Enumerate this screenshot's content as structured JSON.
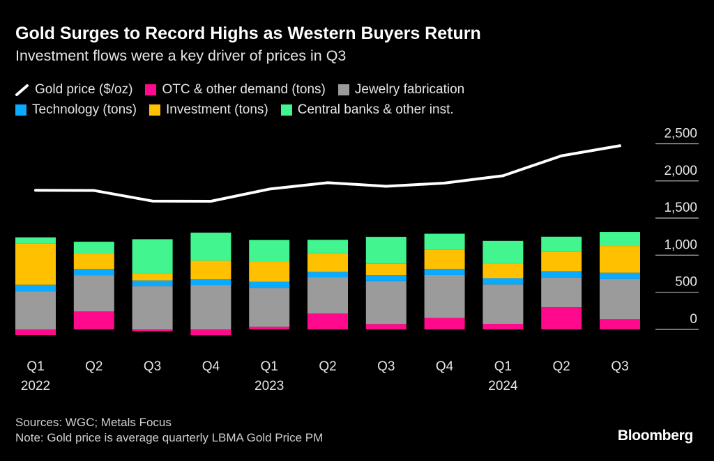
{
  "chart_data": {
    "type": "bar",
    "title": "Gold Surges to Record Highs as Western Buyers Return",
    "subtitle": "Investment flows were a key driver of prices in Q3",
    "categories": [
      "Q1 2022",
      "Q2 2022",
      "Q3 2022",
      "Q4 2022",
      "Q1 2023",
      "Q2 2023",
      "Q3 2023",
      "Q4 2023",
      "Q1 2024",
      "Q2 2024",
      "Q3 2024"
    ],
    "tick_labels": [
      {
        "q": "Q1",
        "year": "2022"
      },
      {
        "q": "Q2",
        "year": ""
      },
      {
        "q": "Q3",
        "year": ""
      },
      {
        "q": "Q4",
        "year": ""
      },
      {
        "q": "Q1",
        "year": "2023"
      },
      {
        "q": "Q2",
        "year": ""
      },
      {
        "q": "Q3",
        "year": ""
      },
      {
        "q": "Q4",
        "year": ""
      },
      {
        "q": "Q1",
        "year": "2024"
      },
      {
        "q": "Q2",
        "year": ""
      },
      {
        "q": "Q3",
        "year": ""
      }
    ],
    "stacked": true,
    "series": [
      {
        "name": "OTC & other demand (tons)",
        "color": "#ff0a8c",
        "values": [
          -75,
          241,
          -25,
          -78,
          35,
          213,
          72,
          154,
          75,
          300,
          138
        ]
      },
      {
        "name": "Jewelry fabrication",
        "color": "#9b9b9b",
        "values": [
          515,
          490,
          581,
          600,
          525,
          490,
          578,
          578,
          531,
          400,
          541
        ]
      },
      {
        "name": "Technology (tons)",
        "color": "#0aaaff",
        "values": [
          87,
          82,
          78,
          75,
          82,
          72,
          81,
          84,
          84,
          84,
          84
        ]
      },
      {
        "name": "Investment (tons)",
        "color": "#ffc000",
        "values": [
          553,
          209,
          97,
          250,
          268,
          250,
          154,
          257,
          197,
          265,
          362
        ]
      },
      {
        "name": "Central banks & other inst.",
        "color": "#43f58f",
        "values": [
          84,
          159,
          459,
          378,
          294,
          181,
          362,
          216,
          306,
          200,
          188
        ]
      }
    ],
    "line_series": {
      "name": "Gold price ($/oz)",
      "color": "#ffffff",
      "values": [
        1874,
        1871,
        1729,
        1726,
        1890,
        1976,
        1928,
        1971,
        2070,
        2338,
        2474
      ]
    },
    "legend_order": [
      "Gold price ($/oz)",
      "OTC & other demand (tons)",
      "Jewelry fabrication",
      "Technology (tons)",
      "Investment (tons)",
      "Central banks & other inst."
    ],
    "yticks": [
      2500,
      2000,
      1500,
      1000,
      500,
      0
    ],
    "ytick_labels": [
      "2,500",
      "2,000",
      "1,500",
      "1,000",
      "500",
      "0"
    ],
    "ylim": [
      -100,
      2500
    ],
    "legend_position": "top-left",
    "grid": false
  },
  "footer": {
    "sources": "Sources: WGC; Metals Focus",
    "note": "Note: Gold price is average quarterly LBMA Gold Price PM"
  },
  "brand": "Bloomberg"
}
